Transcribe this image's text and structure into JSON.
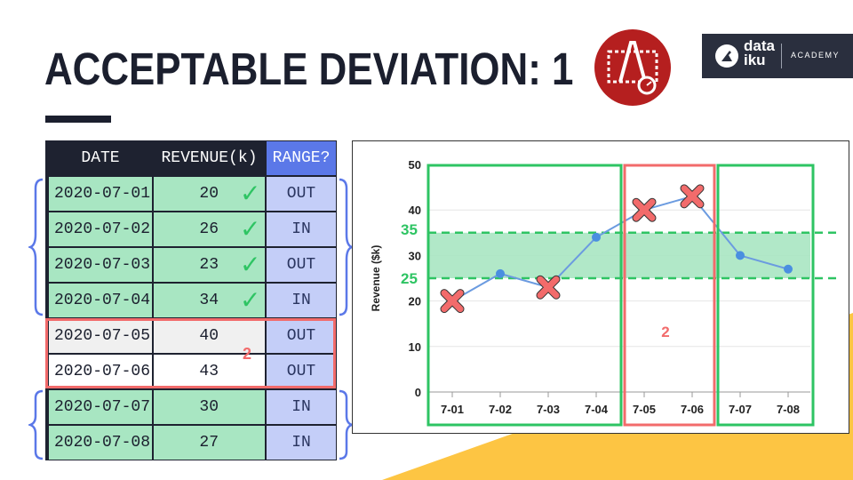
{
  "slide": {
    "title": "ACCEPTABLE DEVIATION: 1",
    "brand": {
      "name": "data\niku",
      "academy": "ACADEMY"
    },
    "logo_icon": "measurement-icon"
  },
  "table": {
    "headers": [
      "DATE",
      "REVENUE(k)",
      "RANGE?"
    ],
    "rows": [
      {
        "date": "2020-07-01",
        "revenue": "20",
        "range": "OUT",
        "check": true,
        "style": "green"
      },
      {
        "date": "2020-07-02",
        "revenue": "26",
        "range": "IN",
        "check": true,
        "style": "green"
      },
      {
        "date": "2020-07-03",
        "revenue": "23",
        "range": "OUT",
        "check": true,
        "style": "green"
      },
      {
        "date": "2020-07-04",
        "revenue": "34",
        "range": "IN",
        "check": true,
        "style": "green"
      },
      {
        "date": "2020-07-05",
        "revenue": "40",
        "range": "OUT",
        "check": false,
        "style": "grey"
      },
      {
        "date": "2020-07-06",
        "revenue": "43",
        "range": "OUT",
        "check": false,
        "style": "white"
      },
      {
        "date": "2020-07-07",
        "revenue": "30",
        "range": "IN",
        "check": false,
        "style": "green"
      },
      {
        "date": "2020-07-08",
        "revenue": "27",
        "range": "IN",
        "check": false,
        "style": "green"
      }
    ],
    "check_glyph": "✓",
    "deviation_label": "2"
  },
  "chart_data": {
    "type": "line",
    "categories": [
      "7-01",
      "7-02",
      "7-03",
      "7-04",
      "7-05",
      "7-06",
      "7-07",
      "7-08"
    ],
    "values": [
      20,
      26,
      23,
      34,
      40,
      43,
      30,
      27
    ],
    "out_of_range_markers": [
      "7-01",
      "7-03",
      "7-05",
      "7-06"
    ],
    "ylabel": "Revenue ($k)",
    "ylim": [
      0,
      50
    ],
    "yticks": [
      "0",
      "10",
      "20",
      "30",
      "40",
      "50"
    ],
    "band": {
      "low": 25,
      "high": 35,
      "low_label": "25",
      "high_label": "35"
    },
    "deviation_label": "2",
    "colors": {
      "line": "#6b9be0",
      "point": "#4a8fe0",
      "band": "#a8e6c2",
      "band_line": "#2ec463",
      "marker": "#f26b6b",
      "green_box": "#2ec463",
      "red_box": "#f26b6b"
    }
  }
}
